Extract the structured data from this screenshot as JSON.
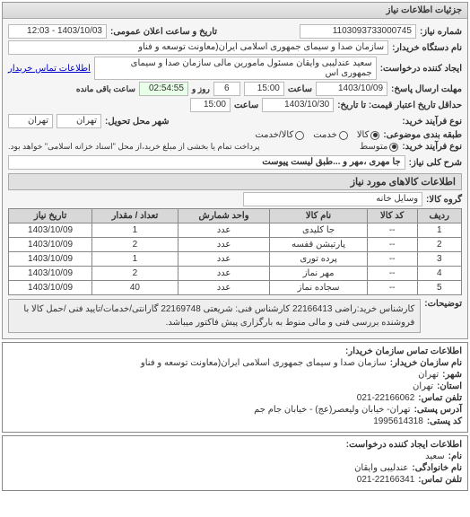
{
  "panel": {
    "title": "جزئیات اطلاعات نیاز"
  },
  "header": {
    "req_no_label": "شماره نیاز:",
    "req_no": "1103093733000745",
    "announce_label": "تاریخ و ساعت اعلان عمومی:",
    "announce": "1403/10/03 - 12:03",
    "buyer_label": "نام دستگاه خریدار:",
    "buyer": "سازمان صدا و سیمای جمهوری اسلامی ایران(معاونت توسعه و فناو",
    "creator_label": "ایجاد کننده درخواست:",
    "creator": "سعید عندلیبی وایقان مسئول مامورین مالی  سازمان صدا و سیمای جمهوری اس",
    "creator_link": "اطلاعات تماس خریدار",
    "deadline_send_label": "مهلت ارسال پاسخ:",
    "deadline_from_label": "از تاریخ:",
    "deadline_date": "1403/10/09",
    "deadline_time_label": "ساعت",
    "deadline_time": "15:00",
    "remain_days_label": "روز و",
    "remain_days": "6",
    "remain_time": "02:54:55",
    "remain_suffix": "ساعت باقی مانده",
    "price_valid_label": "حداقل تاریخ اعتبار قیمت: تا تاریخ:",
    "price_valid_date": "1403/10/30",
    "price_valid_time": "15:00",
    "buy_type_label": "نوع فرآیند خرید:",
    "delivery_city_label": "شهر محل تحویل:",
    "delivery_city": "تهران",
    "delivery_city2": "تهران",
    "category_label": "طبقه بندی موضوعی:",
    "radios": {
      "kala": "کالا",
      "khadamat": "خدمت",
      "both": "کالا/خدمت"
    },
    "buy_type2_label": "نوع فرآیند خرید:",
    "metosta": "متوسط",
    "payment_note": "پرداخت تمام یا بخشی از مبلغ خرید،از محل \"اسناد خزانه اسلامی\" خواهد بود."
  },
  "need": {
    "title_label": "شرح کلی نیاز:",
    "title": "جا مهری ،مهر و ...طبق لیست پیوست"
  },
  "goods": {
    "section": "اطلاعات کالاهای مورد نیاز",
    "group_label": "گروه کالا:",
    "group": "وسایل خانه",
    "columns": [
      "ردیف",
      "کد کالا",
      "نام کالا",
      "واحد شمارش",
      "تعداد / مقدار",
      "تاریخ نیاز"
    ],
    "rows": [
      [
        "1",
        "--",
        "جا کلیدی",
        "عدد",
        "1",
        "1403/10/09"
      ],
      [
        "2",
        "--",
        "پارتیشن قفسه",
        "عدد",
        "2",
        "1403/10/09"
      ],
      [
        "3",
        "--",
        "پرده توری",
        "عدد",
        "1",
        "1403/10/09"
      ],
      [
        "4",
        "--",
        "مهر نماز",
        "عدد",
        "2",
        "1403/10/09"
      ],
      [
        "5",
        "--",
        "سجاده نماز",
        "عدد",
        "40",
        "1403/10/09"
      ]
    ]
  },
  "desc": {
    "label": "توضیحات:",
    "text": "کارشناس خرید:راضی 22166413 کارشناس فنی: شریعتی 22169748 گارانتی/خدمات/تایید فنی /حمل کالا با فروشنده بررسی فنی و مالی منوط به بارگزاری پیش فاکتور میباشد."
  },
  "contact": {
    "header": "اطلاعات تماس سازمان خریدار:",
    "org_label": "نام سازمان خریدار:",
    "org": "سازمان صدا و سیمای جمهوری اسلامی ایران(معاونت توسعه و فناو",
    "city_label": "شهر:",
    "city": "تهران",
    "province_label": "استان:",
    "province": "تهران",
    "phone_label": "تلفن تماس:",
    "phone": "021-22166062",
    "addr_label": "آدرس پستی:",
    "addr": "تهران- خیابان ولیعصر(عج) - خیابان جام جم",
    "post_label": "کد پستی:",
    "post": "1995614318"
  },
  "requester": {
    "header": "اطلاعات ایجاد کننده درخواست:",
    "name_label": "نام:",
    "name": "سعید",
    "family_label": "نام خانوادگی:",
    "family": "عندلیبی وایقان",
    "phone_label": "تلفن تماس:",
    "phone": "021-22166341"
  }
}
